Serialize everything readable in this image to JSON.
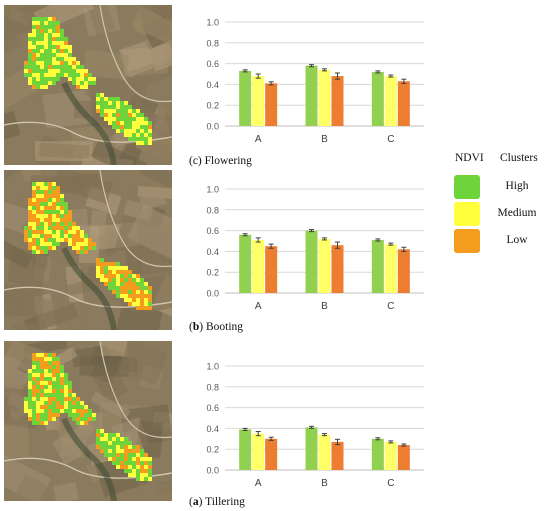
{
  "colors": {
    "high": "#6fd33a",
    "medium": "#ffff3c",
    "low": "#f39c1e"
  },
  "legend": {
    "ndvi_label": "NDVI",
    "clusters_label": "Clusters",
    "items": [
      {
        "label": "High",
        "color": "#6fd33a"
      },
      {
        "label": "Medium",
        "color": "#ffff3c"
      },
      {
        "label": "Low",
        "color": "#f39c1e"
      }
    ]
  },
  "captions": {
    "flowering": {
      "letter": "(c)",
      "name": "Flowering"
    },
    "booting": {
      "letter": "b",
      "name": "Booting"
    },
    "tillering": {
      "letter": "a",
      "name": "Tillering"
    }
  },
  "chart_data": [
    {
      "type": "bar",
      "caption": "(c) Flowering",
      "categories": [
        "A",
        "B",
        "C"
      ],
      "series": [
        {
          "name": "High",
          "color": "#92d050",
          "values": [
            0.53,
            0.58,
            0.52
          ],
          "errors": [
            0.01,
            0.01,
            0.01
          ]
        },
        {
          "name": "Medium",
          "color": "#ffff66",
          "values": [
            0.48,
            0.54,
            0.48
          ],
          "errors": [
            0.02,
            0.01,
            0.01
          ]
        },
        {
          "name": "Low",
          "color": "#ed7d31",
          "values": [
            0.41,
            0.48,
            0.43
          ],
          "errors": [
            0.015,
            0.03,
            0.02
          ]
        }
      ],
      "ylim": [
        0,
        1.0
      ],
      "yticks": [
        "0.0",
        "0.2",
        "0.4",
        "0.6",
        "0.8",
        "1.0"
      ],
      "grid": true
    },
    {
      "type": "bar",
      "caption": "(b) Booting",
      "categories": [
        "A",
        "B",
        "C"
      ],
      "series": [
        {
          "name": "High",
          "color": "#92d050",
          "values": [
            0.56,
            0.6,
            0.51
          ],
          "errors": [
            0.01,
            0.01,
            0.01
          ]
        },
        {
          "name": "Medium",
          "color": "#ffff66",
          "values": [
            0.51,
            0.52,
            0.47
          ],
          "errors": [
            0.02,
            0.01,
            0.01
          ]
        },
        {
          "name": "Low",
          "color": "#ed7d31",
          "values": [
            0.45,
            0.46,
            0.42
          ],
          "errors": [
            0.02,
            0.03,
            0.02
          ]
        }
      ],
      "ylim": [
        0,
        1.0
      ],
      "yticks": [
        "0.0",
        "0.2",
        "0.4",
        "0.6",
        "0.8",
        "1.0"
      ],
      "grid": true
    },
    {
      "type": "bar",
      "caption": "(a) Tillering",
      "categories": [
        "A",
        "B",
        "C"
      ],
      "series": [
        {
          "name": "High",
          "color": "#92d050",
          "values": [
            0.39,
            0.41,
            0.3
          ],
          "errors": [
            0.01,
            0.01,
            0.01
          ]
        },
        {
          "name": "Medium",
          "color": "#ffff66",
          "values": [
            0.35,
            0.34,
            0.27
          ],
          "errors": [
            0.02,
            0.01,
            0.01
          ]
        },
        {
          "name": "Low",
          "color": "#ed7d31",
          "values": [
            0.3,
            0.27,
            0.24
          ],
          "errors": [
            0.015,
            0.025,
            0.01
          ]
        }
      ],
      "ylim": [
        0,
        1.0
      ],
      "yticks": [
        "0.0",
        "0.2",
        "0.4",
        "0.6",
        "0.8",
        "1.0"
      ],
      "grid": true
    }
  ]
}
